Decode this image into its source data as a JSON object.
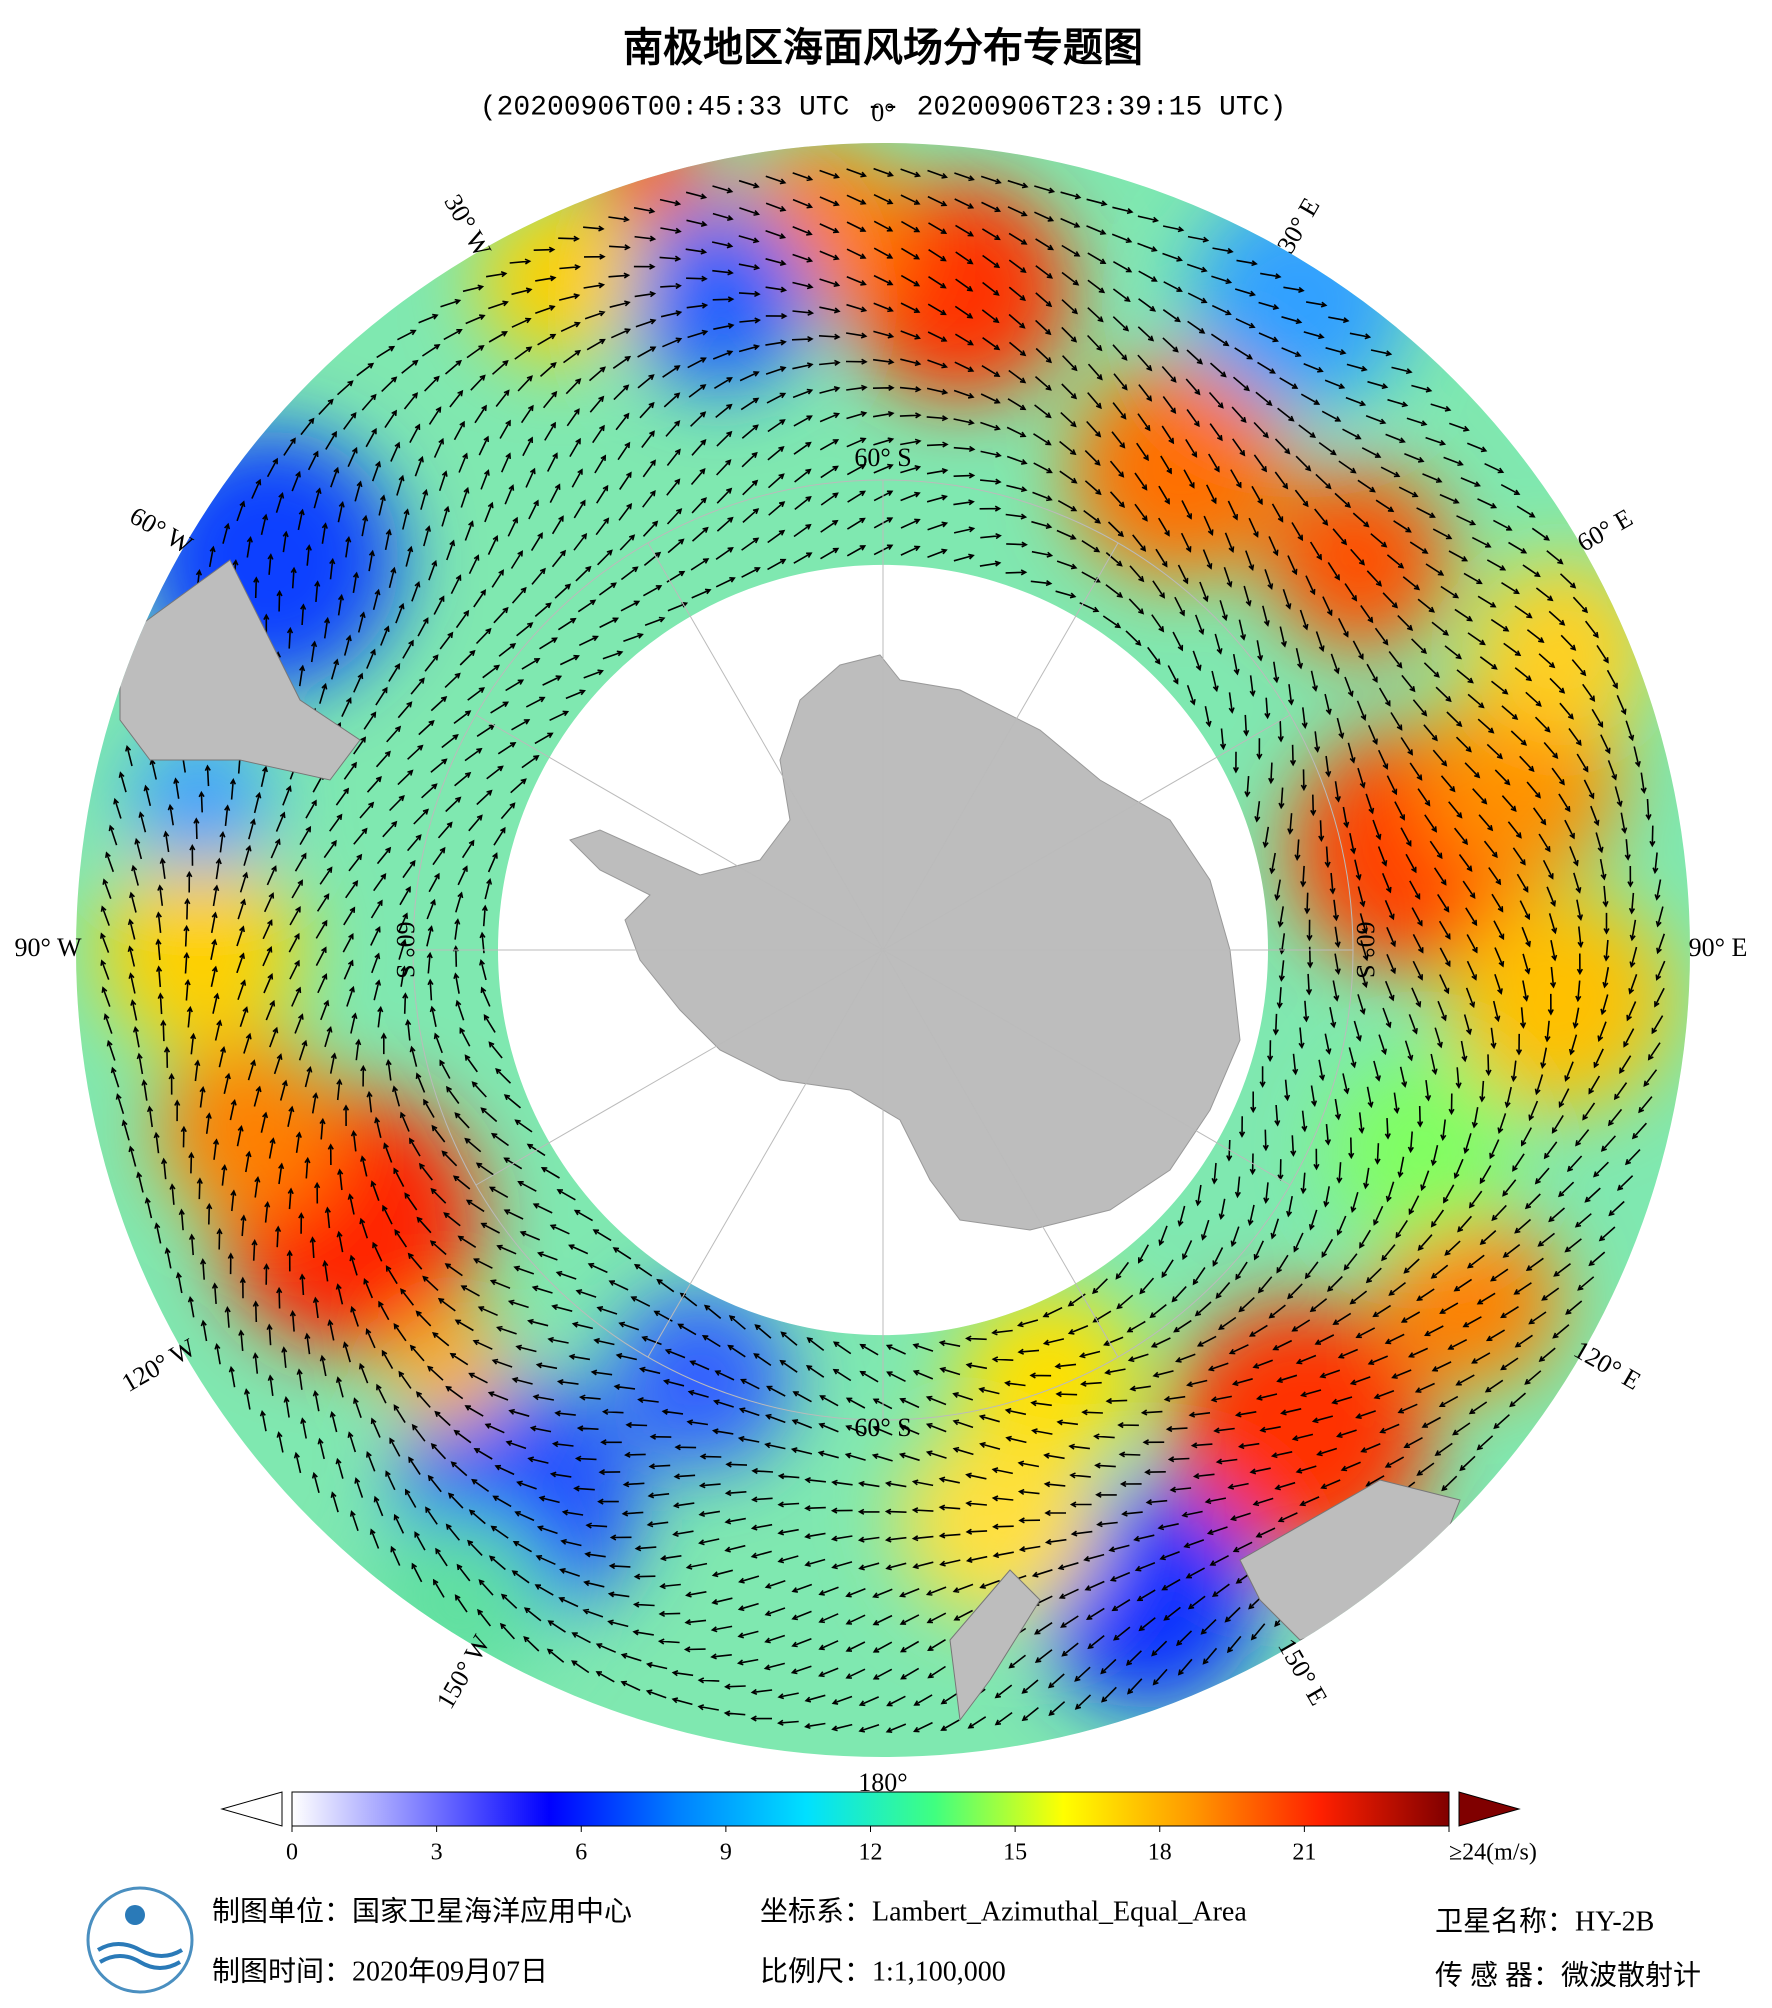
{
  "header": {
    "title": "南极地区海面风场分布专题图",
    "subtitle": "(20200906T00:45:33 UTC -- 20200906T23:39:15 UTC)"
  },
  "map": {
    "longitude_labels": [
      "0°",
      "30° E",
      "60° E",
      "90° E",
      "120° E",
      "150° E",
      "180°",
      "150° W",
      "120° W",
      "90° W",
      "60° W",
      "30° W"
    ],
    "latitude_labels": [
      "60° S",
      "60° S",
      "60° S",
      "60° S"
    ]
  },
  "colorbar": {
    "range": [
      0,
      24
    ],
    "ticks": [
      0,
      3,
      6,
      9,
      12,
      15,
      18,
      21,
      {
        "value": 24,
        "label": "≥24(m/s)"
      }
    ],
    "colors": [
      "#ffffff",
      "#8080ff",
      "#0000ff",
      "#0080ff",
      "#00e0ff",
      "#40ff80",
      "#ffff00",
      "#ff9900",
      "#ff2000",
      "#800000"
    ]
  },
  "footer": {
    "producer": "制图单位：国家卫星海洋应用中心",
    "time": "制图时间：2020年09月07日",
    "crs": "坐标系：Lambert_Azimuthal_Equal_Area",
    "scale": "比例尺：1:1,100,000",
    "satellite": "卫星名称：HY-2B",
    "sensor": "传 感 器：微波散射计"
  }
}
